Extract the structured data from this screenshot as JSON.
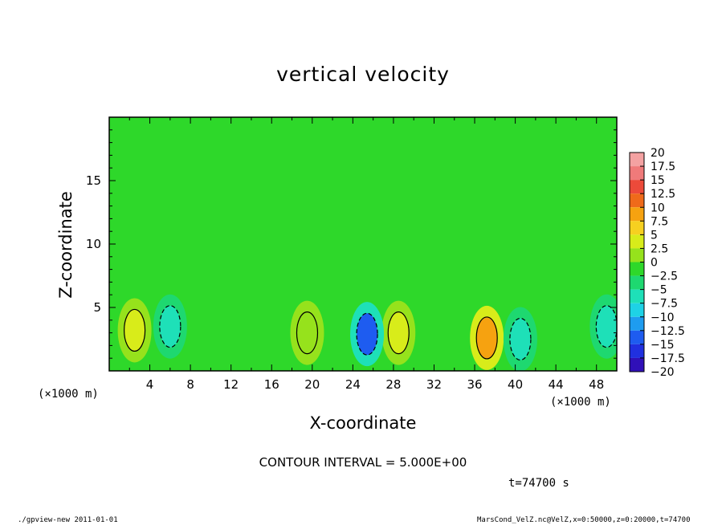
{
  "chart_data": {
    "type": "heatmap",
    "title": "vertical velocity",
    "xlabel": "X-coordinate",
    "ylabel": "Z-coordinate",
    "x_unit_label": "(×1000 m)",
    "xlim": [
      0,
      50
    ],
    "ylim": [
      0,
      20
    ],
    "xticks": [
      "4",
      "8",
      "12",
      "16",
      "20",
      "24",
      "28",
      "32",
      "36",
      "40",
      "44",
      "48"
    ],
    "xtick_values": [
      4,
      8,
      12,
      16,
      20,
      24,
      28,
      32,
      36,
      40,
      44,
      48
    ],
    "yticks": [
      "5",
      "10",
      "15"
    ],
    "ytick_values": [
      5,
      10,
      15
    ],
    "colorbar": {
      "labels": [
        "20",
        "17.5",
        "15",
        "12.5",
        "10",
        "7.5",
        "5",
        "2.5",
        "0",
        "−2.5",
        "−5",
        "−7.5",
        "−10",
        "−12.5",
        "−15",
        "−17.5",
        "−20"
      ],
      "colors": [
        "#f4a2a2",
        "#f07a7a",
        "#ec4a3a",
        "#ef6a1a",
        "#f6a210",
        "#f6d020",
        "#d8ec1a",
        "#96e21c",
        "#2ed82a",
        "#1ed870",
        "#1ee0b8",
        "#1ed2e6",
        "#1e9cf0",
        "#1e5cf0",
        "#2030e0",
        "#3010b8",
        "#6a18b0"
      ],
      "grid": false
    },
    "contour_interval_text": "CONTOUR INTERVAL = 5.000E+00",
    "background_value": 0,
    "features": [
      {
        "x": 2.5,
        "z": 3.2,
        "value": 6
      },
      {
        "x": 28.5,
        "z": 3.0,
        "value": 5.5
      },
      {
        "x": 37.2,
        "z": 2.6,
        "value": 9
      },
      {
        "x": 19.5,
        "z": 3.0,
        "value": 3
      },
      {
        "x": 25.4,
        "z": 2.9,
        "value": -12
      },
      {
        "x": 6.0,
        "z": 3.5,
        "value": -6
      },
      {
        "x": 40.5,
        "z": 2.5,
        "value": -6
      },
      {
        "x": 49.0,
        "z": 3.5,
        "value": -6
      }
    ]
  },
  "annotations": {
    "time": "t=74700 s",
    "footer_left": "./gpview-new  2011-01-01",
    "footer_right": "MarsCond_VelZ.nc@VelZ,x=0:50000,z=0:20000,t=74700"
  }
}
